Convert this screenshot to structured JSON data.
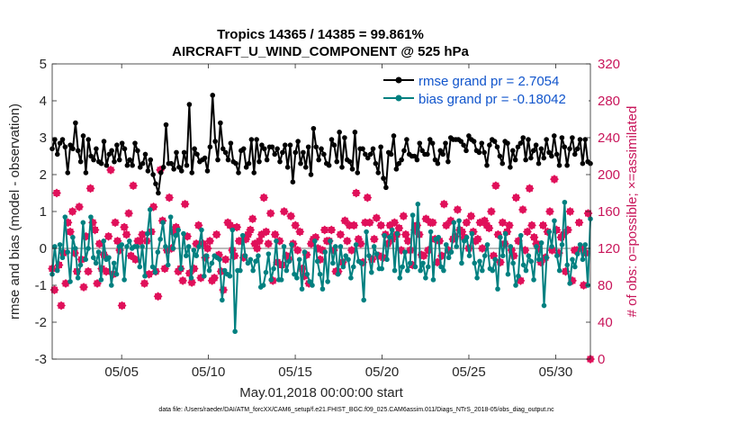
{
  "chart_data": {
    "type": "line",
    "title": "Tropics 14365 / 14385 = 99.861%",
    "subtitle": "AIRCRAFT_U_WIND_COMPONENT @ 525 hPa",
    "xlabel": "May.01,2018 00:00:00 start",
    "ylabel_left": "rmse and bias (model - observation)",
    "ylabel_right": "# of obs: o=possible; ×=assimilated",
    "xlim": [
      1,
      32
    ],
    "ylim_left": [
      -3,
      5
    ],
    "ylim_right": [
      0,
      320
    ],
    "x_ticks": [
      5,
      10,
      15,
      20,
      25,
      30
    ],
    "x_tick_labels": [
      "05/05",
      "05/10",
      "05/15",
      "05/20",
      "05/25",
      "05/30"
    ],
    "y_ticks_left": [
      -3,
      -2,
      -1,
      0,
      1,
      2,
      3,
      4,
      5
    ],
    "y_ticks_right": [
      0,
      40,
      80,
      120,
      160,
      200,
      240,
      280,
      320
    ],
    "legend_position": "top-right",
    "series": [
      {
        "name": "rmse grand pr = 2.7054",
        "color": "#000000",
        "marker": "circle",
        "values": [
          2.7,
          2.95,
          2.55,
          2.85,
          2.95,
          2.75,
          2.05,
          2.8,
          2.7,
          3.4,
          2.65,
          2.35,
          3.05,
          2.05,
          2.95,
          2.5,
          2.4,
          2.7,
          2.35,
          2.3,
          2.9,
          2.25,
          2.55,
          2.65,
          2.35,
          2.8,
          2.4,
          2.85,
          2.7,
          2.25,
          2.4,
          2.25,
          2.85,
          2.65,
          2.2,
          2.3,
          2.55,
          2.1,
          2.4,
          2.0,
          1.75,
          1.5,
          2.05,
          2.2,
          3.35,
          2.3,
          2.3,
          2.15,
          2.6,
          2.2,
          2.1,
          2.6,
          2.25,
          3.9,
          2.05,
          2.7,
          2.55,
          2.35,
          2.4,
          2.45,
          2.1,
          2.75,
          4.15,
          2.9,
          2.4,
          3.4,
          2.7,
          2.6,
          2.4,
          2.85,
          2.35,
          2.3,
          2.05,
          2.65,
          2.7,
          2.2,
          2.3,
          2.95,
          2.05,
          2.95,
          2.35,
          2.8,
          2.7,
          2.4,
          2.75,
          2.75,
          2.55,
          2.7,
          2.35,
          2.6,
          2.8,
          2.2,
          2.8,
          1.8,
          2.6,
          2.9,
          2.3,
          2.6,
          2.2,
          2.75,
          2.0,
          3.25,
          2.75,
          2.4,
          2.7,
          2.55,
          2.3,
          2.25,
          2.95,
          2.8,
          2.35,
          3.15,
          2.2,
          3.0,
          2.4,
          2.35,
          2.15,
          3.15,
          2.05,
          2.7,
          2.7,
          2.55,
          2.45,
          2.55,
          2.7,
          2.3,
          2.05,
          2.75,
          1.9,
          1.65,
          2.6,
          2.55,
          3.05,
          2.15,
          2.3,
          2.4,
          2.65,
          2.95,
          2.55,
          2.5,
          2.5,
          2.4,
          2.85,
          2.65,
          2.55,
          2.55,
          2.95,
          2.85,
          2.4,
          2.3,
          2.65,
          2.55,
          2.85,
          2.35,
          3.0,
          2.95,
          2.95,
          2.95,
          2.9,
          2.8,
          2.65,
          3.05,
          2.95,
          2.9,
          2.65,
          2.6,
          2.85,
          2.6,
          2.25,
          2.8,
          2.95,
          2.9,
          2.75,
          2.5,
          2.3,
          2.9,
          2.85,
          2.2,
          2.65,
          2.4,
          2.75,
          2.85,
          3.0,
          2.4,
          2.95,
          2.45,
          2.65,
          2.8,
          2.3,
          2.7,
          2.45,
          2.95,
          2.6,
          2.5,
          3.05,
          2.55,
          2.25,
          3.0,
          2.75,
          2.25,
          2.7,
          3.0,
          2.55,
          2.7,
          2.95,
          2.3,
          2.95,
          2.35,
          2.3
        ]
      },
      {
        "name": "bias grand pr = -0.18042",
        "color": "#008080",
        "marker": "circle",
        "values": [
          -0.7,
          0.05,
          -0.6,
          0.1,
          -0.25,
          0.85,
          -0.1,
          -0.9,
          0.3,
          0.0,
          -0.8,
          -0.45,
          0.7,
          -0.3,
          0.0,
          0.85,
          -0.25,
          -0.4,
          -0.1,
          -0.85,
          0.2,
          -0.3,
          -0.25,
          -1.0,
          -0.4,
          -0.7,
          0.05,
          0.1,
          -0.85,
          0.05,
          0.2,
          0.0,
          0.05,
          0.05,
          -0.5,
          0.05,
          -0.75,
          0.4,
          1.05,
          -0.5,
          -0.65,
          -0.1,
          0.25,
          0.7,
          0.05,
          -0.45,
          0.85,
          0.0,
          0.35,
          0.5,
          -0.55,
          0.4,
          -0.2,
          0.05,
          -0.8,
          -0.05,
          -0.2,
          0.05,
          0.5,
          -0.75,
          -0.2,
          -0.6,
          -0.4,
          -0.2,
          -0.25,
          -0.3,
          -1.4,
          -0.6,
          -0.7,
          -0.75,
          0.5,
          -2.25,
          -0.6,
          -0.6,
          0.35,
          -0.2,
          -0.4,
          -0.3,
          -0.6,
          -0.35,
          -0.2,
          -1.05,
          -1.0,
          -0.65,
          -0.15,
          -0.85,
          -0.55,
          0.2,
          -0.85,
          -0.85,
          0.05,
          -0.6,
          -0.35,
          0.1,
          -0.7,
          -0.8,
          -0.3,
          -1.1,
          -0.1,
          -0.7,
          -0.9,
          -1.0,
          0.2,
          -0.35,
          -0.7,
          -1.1,
          -0.1,
          -0.9,
          0.2,
          -0.4,
          0.05,
          -0.7,
          0.05,
          -0.5,
          -0.2,
          -0.3,
          -0.8,
          -0.5,
          0.1,
          -0.35,
          -0.4,
          -1.4,
          0.45,
          -0.2,
          -0.65,
          0.05,
          -0.15,
          -0.55,
          -0.55,
          0.35,
          -0.3,
          0.3,
          0.5,
          -0.6,
          0.4,
          -0.8,
          -0.5,
          -0.1,
          -0.6,
          -0.4,
          0.9,
          -0.5,
          1.2,
          -0.6,
          -0.4,
          -0.8,
          -0.5,
          0.45,
          -0.85,
          0.25,
          0.3,
          -0.5,
          -0.6,
          0.1,
          -0.25,
          -0.1,
          0.7,
          0.05,
          0.75,
          -0.4,
          0.2,
          0.3,
          -0.2,
          0.4,
          -0.4,
          -0.8,
          -0.35,
          -0.6,
          -0.2,
          0.1,
          -0.55,
          -0.6,
          -0.3,
          -1.1,
          0.3,
          -0.2,
          0.4,
          -0.7,
          0.05,
          -0.4,
          -1.0,
          -0.75,
          0.35,
          -0.45,
          -0.6,
          -0.2,
          -0.35,
          -0.85,
          0.05,
          -0.3,
          0.15,
          -1.55,
          -0.25,
          0.45,
          0.05,
          0.75,
          -0.2,
          -0.6,
          0.1,
          1.25,
          -0.45,
          -0.95,
          -0.3,
          -0.5,
          -0.15,
          0.1,
          -0.3,
          0.1,
          -1.0,
          0.8
        ]
      }
    ],
    "obs_possible": [],
    "obs_assimilated": [
      98,
      75,
      180,
      102,
      58,
      115,
      82,
      148,
      138,
      160,
      115,
      95,
      165,
      108,
      78,
      133,
      95,
      185,
      148,
      140,
      82,
      125,
      98,
      113,
      95,
      133,
      205,
      92,
      148,
      128,
      118,
      58,
      143,
      135,
      158,
      112,
      188,
      108,
      128,
      128,
      135,
      82,
      128,
      92,
      138,
      165,
      95,
      68,
      205,
      150,
      98,
      118,
      175,
      120,
      138,
      143,
      95,
      98,
      85,
      168,
      133,
      93,
      83,
      98,
      125,
      145,
      88,
      125,
      110,
      120,
      128,
      85,
      88,
      135,
      113,
      95,
      75,
      108,
      148,
      145,
      118,
      112,
      143,
      128,
      128,
      110,
      130,
      135,
      140,
      152,
      125,
      120,
      128,
      135,
      175,
      138,
      125,
      158,
      85,
      135,
      105,
      128,
      102,
      160,
      112,
      108,
      155,
      125,
      145,
      118,
      138,
      98,
      90,
      113,
      82,
      125,
      130,
      132,
      120,
      108,
      118,
      140,
      128,
      128,
      140,
      118,
      95,
      95,
      135,
      105,
      150,
      128,
      145,
      118,
      145,
      180,
      130,
      125,
      105,
      148,
      175,
      148,
      108,
      130,
      153,
      112,
      145,
      110,
      135,
      125,
      145,
      130,
      148,
      135,
      142,
      118,
      155,
      135,
      128,
      118,
      102,
      140,
      145,
      135,
      113,
      112,
      152,
      118,
      148,
      148,
      130,
      105,
      128,
      112,
      168,
      145,
      118,
      150,
      130,
      133,
      162,
      140,
      138,
      132,
      148,
      120,
      155,
      138,
      128,
      130,
      148,
      120,
      150,
      145,
      142,
      160,
      112,
      188,
      135,
      105,
      148,
      125,
      138,
      145,
      118,
      112,
      175,
      128,
      85,
      162,
      118,
      138,
      185,
      145,
      132,
      125,
      120,
      105,
      145,
      110,
      138,
      160,
      118,
      195,
      140,
      115,
      132,
      135,
      95,
      140,
      160,
      85,
      118,
      118,
      148,
      120,
      80,
      115,
      158,
      0
    ],
    "zero_line": 0
  },
  "footer": {
    "data_file": "data file: /Users/raeder/DAI/ATM_forcXX/CAM6_setup/f.e21.FHIST_BGC.f09_025.CAM6assim.011/Diags_NTrS_2018-05/obs_diag_output.nc"
  },
  "colors": {
    "rmse": "#000000",
    "bias": "#008080",
    "obs": "#e0105a",
    "right_axis": "#c8155a",
    "legend_text": "#1155cc",
    "zero_line": "#bbbbbb"
  }
}
